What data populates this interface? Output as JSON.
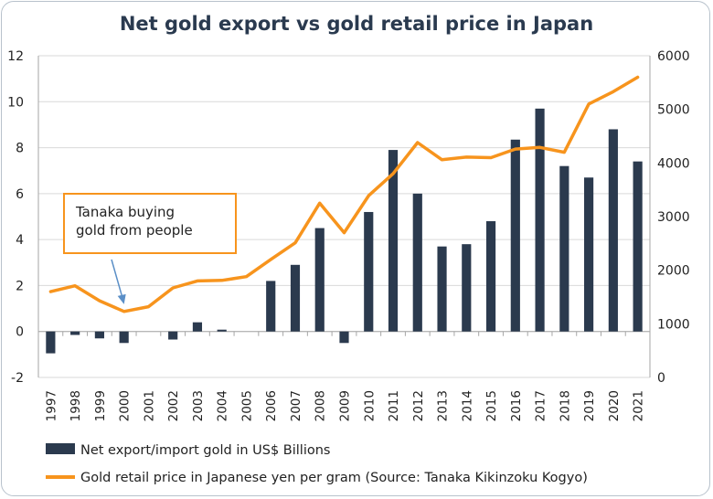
{
  "chart_data": {
    "type": "bar+line",
    "title": "Net gold export vs gold retail price in Japan",
    "categories": [
      "1997",
      "1998",
      "1999",
      "2000",
      "2001",
      "2002",
      "2003",
      "2004",
      "2005",
      "2006",
      "2007",
      "2008",
      "2009",
      "2010",
      "2011",
      "2012",
      "2013",
      "2014",
      "2015",
      "2016",
      "2017",
      "2018",
      "2019",
      "2020",
      "2021"
    ],
    "series": [
      {
        "name": "Net export/import gold in US$ Billions",
        "type": "bar",
        "axis": "left",
        "color": "#2b3a4e",
        "values": [
          -0.95,
          -0.15,
          -0.3,
          -0.5,
          0.0,
          -0.35,
          0.4,
          0.08,
          0.0,
          2.2,
          2.9,
          4.5,
          -0.5,
          5.2,
          7.9,
          6.0,
          3.7,
          3.8,
          4.8,
          8.35,
          9.7,
          7.2,
          6.7,
          8.8,
          7.4
        ]
      },
      {
        "name": "Gold retail price in Japanese yen per gram (Source: Tanaka Kikinzoku Kogyo)",
        "type": "line",
        "axis": "right",
        "color": "#f7941d",
        "values": [
          1600,
          1710,
          1430,
          1230,
          1320,
          1670,
          1800,
          1810,
          1880,
          2200,
          2510,
          3250,
          2700,
          3390,
          3800,
          4380,
          4060,
          4110,
          4100,
          4260,
          4290,
          4200,
          5100,
          5330,
          5600
        ]
      }
    ],
    "y_left": {
      "min": -2,
      "max": 12,
      "ticks": [
        "-2",
        "0",
        "2",
        "4",
        "6",
        "8",
        "10",
        "12"
      ]
    },
    "y_right": {
      "min": 0,
      "max": 6000,
      "ticks": [
        "0",
        "1000",
        "2000",
        "3000",
        "4000",
        "5000",
        "6000"
      ]
    },
    "grid": true,
    "legend_position": "bottom",
    "annotation": {
      "lines": [
        "Tanaka buying",
        "gold from people"
      ],
      "points_to": "2000",
      "border_color": "#f7941d"
    }
  }
}
